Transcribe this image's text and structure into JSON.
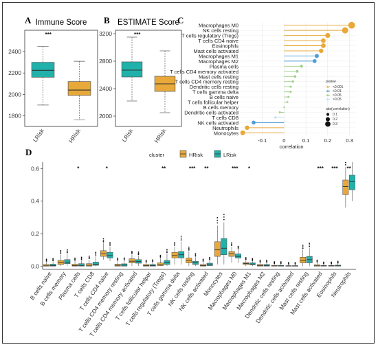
{
  "colors": {
    "hrisk": "#E8A93A",
    "lrisk": "#20B2AA",
    "pval_high": "#E8A93A",
    "pval_mid": "#4F9ED8",
    "pval_low": "#9FD08A",
    "pval_vlow": "#C9DFF0"
  },
  "chart_data": [
    {
      "panel": "A",
      "type": "box",
      "title": "Immune Score",
      "categories": [
        "LRisk",
        "HRisk"
      ],
      "ylim": [
        1700,
        2600
      ],
      "yticks": [
        1800,
        2000,
        2200,
        2400
      ],
      "boxes": [
        {
          "min": 1900,
          "q1": 2160,
          "median": 2225,
          "q3": 2300,
          "max": 2450
        },
        {
          "min": 1760,
          "q1": 1990,
          "median": 2040,
          "q3": 2120,
          "max": 2310
        }
      ],
      "significance": "***"
    },
    {
      "panel": "B",
      "type": "box",
      "title": "ESTIMATE Score",
      "categories": [
        "LRisk",
        "HRisk"
      ],
      "ylim": [
        1850,
        3250
      ],
      "yticks": [
        2000,
        2400,
        2800,
        3200
      ],
      "boxes": [
        {
          "min": 2220,
          "q1": 2570,
          "median": 2670,
          "q3": 2790,
          "max": 3150
        },
        {
          "min": 2050,
          "q1": 2360,
          "median": 2470,
          "q3": 2580,
          "max": 2950
        }
      ],
      "significance": "***"
    },
    {
      "panel": "C",
      "type": "lollipop",
      "xlabel": "correlation",
      "xlim": [
        -0.2,
        0.33
      ],
      "xticks": [
        -0.1,
        0.0,
        0.1,
        0.2,
        0.3
      ],
      "categories": [
        "Macrophages M0",
        "NK cells resting",
        "T cells regulatory (Tregs)",
        "T cells CD4 naive",
        "Eosinophils",
        "Mast cells activated",
        "Macrophages M1",
        "Macrophages M2",
        "Plasma cells",
        "T cells CD4 memory activated",
        "Mast cells resting",
        "T cells CD4 memory resting",
        "Dendritic cells resting",
        "T cells gamma delta",
        "B cells naive",
        "T cells follicular helper",
        "B cells memory",
        "Dendritic cells activated",
        "T cells CD8",
        "NK cells activated",
        "Neutrophils",
        "Monocytes"
      ],
      "values": [
        0.31,
        0.28,
        0.2,
        0.18,
        0.18,
        0.17,
        0.15,
        0.14,
        0.08,
        0.06,
        0.05,
        0.04,
        0.03,
        0.03,
        0.02,
        0.015,
        0.0,
        -0.02,
        -0.04,
        -0.14,
        -0.17,
        -0.19
      ],
      "pvalue_group": [
        "high",
        "high",
        "high",
        "high",
        "high",
        "high",
        "mid",
        "mid",
        "low",
        "low",
        "low",
        "low",
        "low",
        "low",
        "low",
        "low",
        "low",
        "low",
        "vlow",
        "mid",
        "high",
        "high"
      ],
      "legend": {
        "pvalue_title": "pvalue",
        "pvalue_items": [
          "<0.001",
          "<0.01",
          "<0.05",
          ">0.05"
        ],
        "size_title": "abs(correlation)",
        "size_items": [
          "0.1",
          "0.2",
          "0.3"
        ]
      }
    },
    {
      "panel": "D",
      "type": "box",
      "legend_title": "cluster",
      "series_names": [
        "HRisk",
        "LRisk"
      ],
      "ylim": [
        -0.02,
        0.64
      ],
      "yticks": [
        0.0,
        0.2,
        0.4,
        0.6
      ],
      "categories": [
        "B cells naive",
        "B cells memory",
        "Plasma cells",
        "T cells CD8",
        "T cells CD4 naive",
        "T cells CD4 memory resting",
        "T cells CD4 memory activated",
        "T cells follicular helper",
        "T cells regulatory (Tregs)",
        "T cells gamma delta",
        "NK cells resting",
        "NK cells activated",
        "Monocytes",
        "Macrophages M0",
        "Macrophages M1",
        "Macrophages M2",
        "Dendritic cells resting",
        "Dendritic cells activated",
        "Mast cells resting",
        "Mast cells activated",
        "Eosinophils",
        "Neutrophils"
      ],
      "significance": [
        "",
        "",
        "*",
        "",
        "*",
        "",
        "",
        "",
        "**",
        "",
        "***",
        "**",
        "",
        "***",
        "*",
        "",
        "",
        "",
        "",
        "***",
        "***",
        "**"
      ],
      "series": [
        {
          "name": "HRisk",
          "boxes": [
            [
              0,
              0,
              0.002,
              0.01,
              0.025
            ],
            [
              0,
              0.01,
              0.02,
              0.035,
              0.07
            ],
            [
              0,
              0,
              0.003,
              0.012,
              0.03
            ],
            [
              0,
              0,
              0.005,
              0.015,
              0.04
            ],
            [
              0.04,
              0.06,
              0.075,
              0.095,
              0.14
            ],
            [
              0,
              0,
              0.005,
              0.012,
              0.03
            ],
            [
              0,
              0.02,
              0.03,
              0.045,
              0.07
            ],
            [
              0,
              0,
              0.003,
              0.01,
              0.02
            ],
            [
              0,
              0.003,
              0.008,
              0.02,
              0.045
            ],
            [
              0.01,
              0.05,
              0.065,
              0.085,
              0.12
            ],
            [
              0,
              0.02,
              0.035,
              0.05,
              0.09
            ],
            [
              0,
              0,
              0.003,
              0.01,
              0.025
            ],
            [
              0.01,
              0.06,
              0.1,
              0.15,
              0.25
            ],
            [
              0.02,
              0.06,
              0.075,
              0.09,
              0.12
            ],
            [
              0,
              0.01,
              0.016,
              0.022,
              0.035
            ],
            [
              0,
              0,
              0.004,
              0.01,
              0.02
            ],
            [
              0,
              0,
              0.001,
              0.005,
              0.012
            ],
            [
              0,
              0,
              0.001,
              0.003,
              0.008
            ],
            [
              0,
              0.02,
              0.035,
              0.055,
              0.1
            ],
            [
              0,
              0,
              0.002,
              0.008,
              0.02
            ],
            [
              0,
              0,
              0.001,
              0.004,
              0.01
            ],
            [
              0.36,
              0.44,
              0.49,
              0.53,
              0.61
            ]
          ]
        },
        {
          "name": "LRisk",
          "boxes": [
            [
              0,
              0,
              0.003,
              0.012,
              0.028
            ],
            [
              0,
              0.015,
              0.025,
              0.04,
              0.075
            ],
            [
              0,
              0,
              0.004,
              0.015,
              0.035
            ],
            [
              0,
              0.005,
              0.012,
              0.025,
              0.06
            ],
            [
              0.03,
              0.05,
              0.065,
              0.085,
              0.12
            ],
            [
              0,
              0,
              0.006,
              0.014,
              0.032
            ],
            [
              0,
              0.018,
              0.028,
              0.04,
              0.065
            ],
            [
              0,
              0,
              0.003,
              0.01,
              0.022
            ],
            [
              0,
              0.01,
              0.02,
              0.035,
              0.075
            ],
            [
              0.01,
              0.05,
              0.07,
              0.09,
              0.15
            ],
            [
              0,
              0.01,
              0.02,
              0.03,
              0.055
            ],
            [
              0,
              0.003,
              0.008,
              0.018,
              0.035
            ],
            [
              0.01,
              0.07,
              0.11,
              0.17,
              0.27
            ],
            [
              0.02,
              0.05,
              0.06,
              0.075,
              0.1
            ],
            [
              0,
              0.008,
              0.013,
              0.02,
              0.03
            ],
            [
              0,
              0,
              0.004,
              0.01,
              0.02
            ],
            [
              0,
              0,
              0.001,
              0.005,
              0.012
            ],
            [
              0,
              0,
              0.001,
              0.003,
              0.008
            ],
            [
              0,
              0.02,
              0.04,
              0.06,
              0.11
            ],
            [
              0,
              0,
              0.001,
              0.004,
              0.01
            ],
            [
              0,
              0,
              0.002,
              0.006,
              0.014
            ],
            [
              0.4,
              0.47,
              0.52,
              0.56,
              0.64
            ]
          ]
        }
      ]
    }
  ]
}
